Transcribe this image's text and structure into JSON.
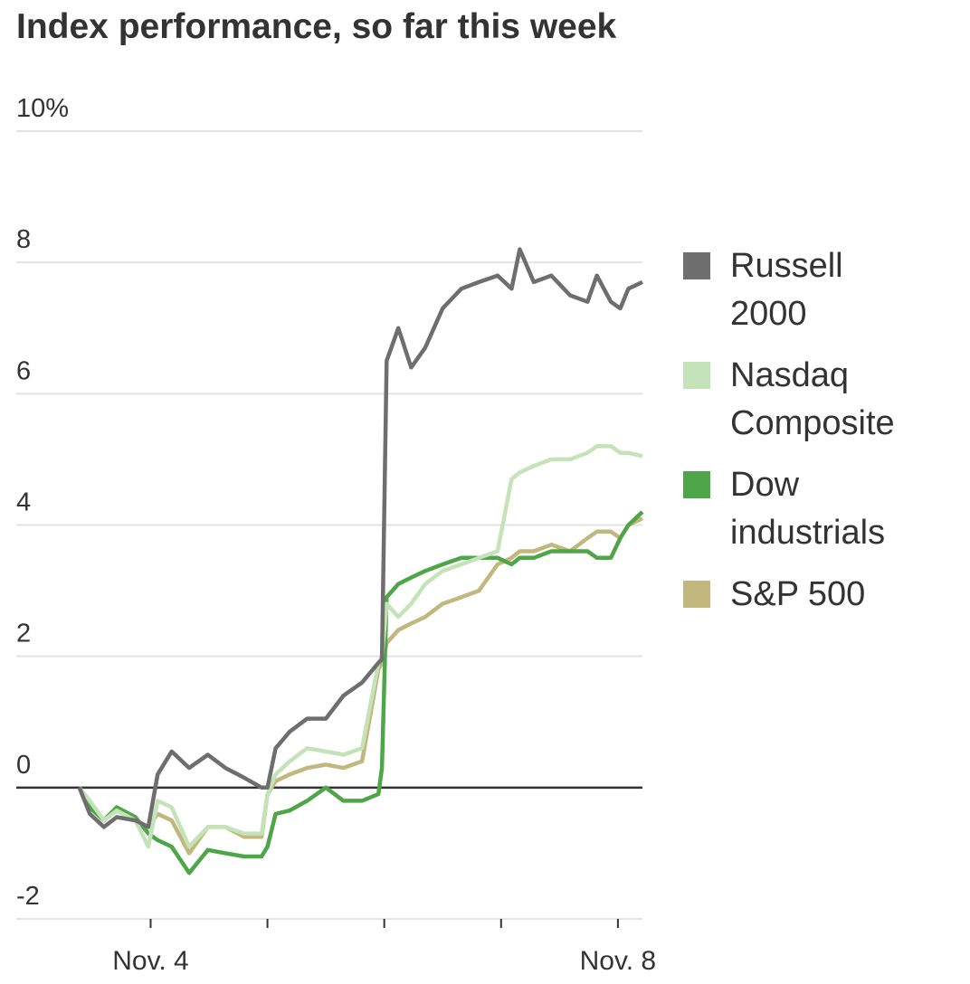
{
  "chart_data": {
    "type": "line",
    "title": "Index performance, so far this week",
    "x": [
      3.39,
      3.48,
      3.6,
      3.71,
      3.87,
      3.98,
      4.06,
      4.18,
      4.33,
      4.49,
      4.64,
      4.8,
      4.95,
      5.0,
      5.07,
      5.19,
      5.34,
      5.5,
      5.65,
      5.81,
      5.95,
      5.98,
      6.02,
      6.12,
      6.23,
      6.35,
      6.5,
      6.66,
      6.81,
      6.97,
      7.09,
      7.16,
      7.28,
      7.43,
      7.59,
      7.74,
      7.82,
      7.94,
      8.02,
      8.09,
      8.21
    ],
    "series": [
      {
        "name": "Russell 2000",
        "color": "#6e6e6e",
        "values": [
          0,
          -0.4,
          -0.6,
          -0.45,
          -0.5,
          -0.6,
          0.2,
          0.55,
          0.3,
          0.5,
          0.3,
          0.15,
          0,
          0,
          0.6,
          0.85,
          1.05,
          1.05,
          1.4,
          1.6,
          1.9,
          1.95,
          6.5,
          7.0,
          6.4,
          6.7,
          7.3,
          7.6,
          7.7,
          7.8,
          7.6,
          8.2,
          7.7,
          7.8,
          7.5,
          7.4,
          7.8,
          7.4,
          7.3,
          7.6,
          7.7
        ]
      },
      {
        "name": "Nasdaq Composite",
        "color": "#c5e3b8",
        "values": [
          0,
          -0.2,
          -0.5,
          -0.35,
          -0.5,
          -0.9,
          -0.2,
          -0.3,
          -0.9,
          -0.6,
          -0.6,
          -0.7,
          -0.7,
          -0.1,
          0.2,
          0.4,
          0.6,
          0.55,
          0.5,
          0.6,
          1.9,
          2.0,
          2.8,
          2.6,
          2.8,
          3.1,
          3.3,
          3.4,
          3.5,
          3.6,
          4.7,
          4.8,
          4.9,
          5.0,
          5.0,
          5.1,
          5.2,
          5.2,
          5.1,
          5.1,
          5.05
        ]
      },
      {
        "name": "Dow industrials",
        "color": "#4ea648",
        "values": [
          0,
          -0.3,
          -0.5,
          -0.3,
          -0.45,
          -0.7,
          -0.8,
          -0.9,
          -1.3,
          -0.95,
          -1.0,
          -1.05,
          -1.05,
          -0.9,
          -0.4,
          -0.35,
          -0.2,
          0,
          -0.2,
          -0.2,
          -0.1,
          0.3,
          2.9,
          3.1,
          3.2,
          3.3,
          3.4,
          3.5,
          3.5,
          3.5,
          3.4,
          3.5,
          3.5,
          3.6,
          3.6,
          3.6,
          3.5,
          3.5,
          3.8,
          4.0,
          4.2
        ]
      },
      {
        "name": "S&P 500",
        "color": "#c2b77d",
        "values": [
          0,
          -0.3,
          -0.5,
          -0.35,
          -0.5,
          -0.6,
          -0.4,
          -0.5,
          -1.0,
          -0.6,
          -0.6,
          -0.75,
          -0.75,
          -0.1,
          0.1,
          0.2,
          0.3,
          0.35,
          0.3,
          0.4,
          1.8,
          1.9,
          2.2,
          2.4,
          2.5,
          2.6,
          2.8,
          2.9,
          3.0,
          3.4,
          3.5,
          3.6,
          3.6,
          3.7,
          3.6,
          3.8,
          3.9,
          3.9,
          3.8,
          4.0,
          4.1
        ]
      }
    ],
    "xlim": [
      2.85,
      8.21
    ],
    "xticks": [
      {
        "value": 4,
        "label": "Nov. 4"
      },
      {
        "value": 8,
        "label": "Nov. 8"
      }
    ],
    "xminor_ticks": [
      5,
      6,
      7
    ],
    "ylim": [
      -2,
      10
    ],
    "yticks": [
      -2,
      0,
      2,
      4,
      6,
      8,
      {
        "value": 10,
        "label": "10%"
      }
    ],
    "grid": true,
    "legend": "right"
  }
}
